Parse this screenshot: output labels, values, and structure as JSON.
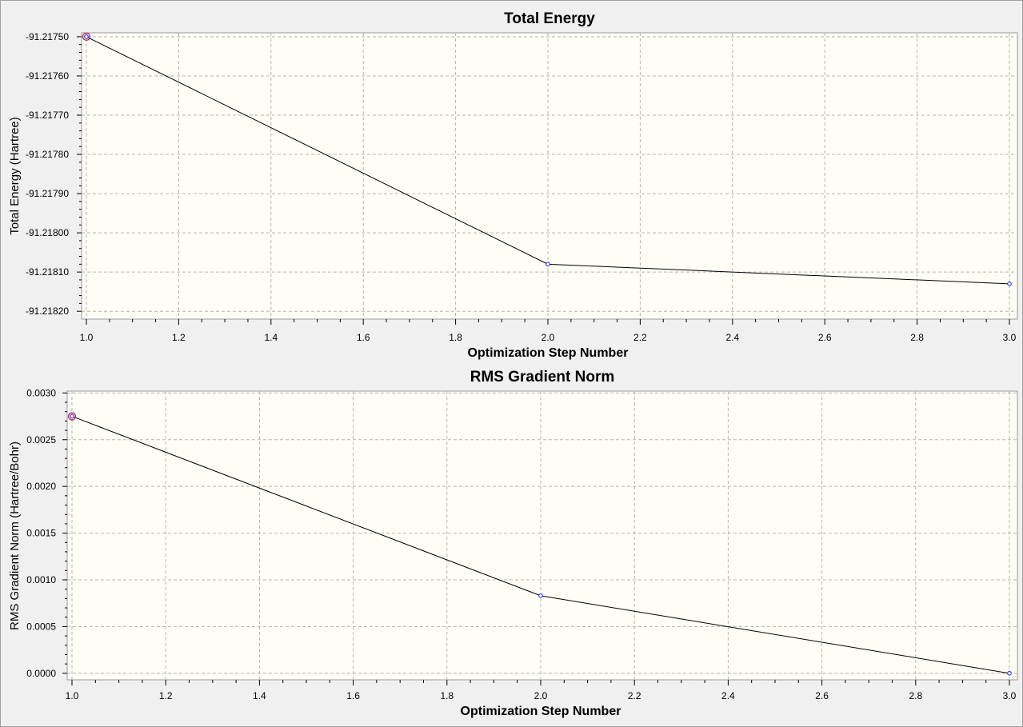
{
  "colors": {
    "background": "#f0f0f0",
    "plot_area": "#fefef6",
    "grid": "#b4b4b4",
    "line": "#000000",
    "marker": "#3a3aff",
    "highlight": "#c0264a"
  },
  "chart_data": [
    {
      "type": "line",
      "title": "Total Energy",
      "xlabel": "Optimization Step Number",
      "ylabel": "Total Energy (Hartree)",
      "x": [
        1.0,
        2.0,
        3.0
      ],
      "y": [
        -91.2175,
        -91.21808,
        -91.21813
      ],
      "xlim": [
        1.0,
        3.0
      ],
      "ylim": [
        -91.21822,
        -91.21749
      ],
      "xticks": [
        1.0,
        1.2,
        1.4,
        1.6,
        1.8,
        2.0,
        2.2,
        2.4,
        2.6,
        2.8,
        3.0
      ],
      "xtick_labels": [
        "1.0",
        "1.2",
        "1.4",
        "1.6",
        "1.8",
        "2.0",
        "2.2",
        "2.4",
        "2.6",
        "2.8",
        "3.0"
      ],
      "yticks": [
        -91.2175,
        -91.2176,
        -91.2177,
        -91.2178,
        -91.2179,
        -91.218,
        -91.2181,
        -91.2182
      ],
      "ytick_labels": [
        "-91.21750",
        "-91.21760",
        "-91.21770",
        "-91.21780",
        "-91.21790",
        "-91.21800",
        "-91.21810",
        "-91.21820"
      ],
      "grid": true,
      "highlighted_index": 0
    },
    {
      "type": "line",
      "title": "RMS Gradient Norm",
      "xlabel": "Optimization Step Number",
      "ylabel": "RMS Gradient Norm (Hartree/Bohr)",
      "x": [
        1.0,
        2.0,
        3.0
      ],
      "y": [
        0.00275,
        0.00083,
        0.0
      ],
      "xlim": [
        1.0,
        3.0
      ],
      "ylim": [
        -7e-05,
        0.00302
      ],
      "xticks": [
        1.0,
        1.2,
        1.4,
        1.6,
        1.8,
        2.0,
        2.2,
        2.4,
        2.6,
        2.8,
        3.0
      ],
      "xtick_labels": [
        "1.0",
        "1.2",
        "1.4",
        "1.6",
        "1.8",
        "2.0",
        "2.2",
        "2.4",
        "2.6",
        "2.8",
        "3.0"
      ],
      "yticks": [
        0.0,
        0.0005,
        0.001,
        0.0015,
        0.002,
        0.0025,
        0.003
      ],
      "ytick_labels": [
        "0.0000",
        "0.0005",
        "0.0010",
        "0.0015",
        "0.0020",
        "0.0025",
        "0.0030"
      ],
      "grid": true,
      "highlighted_index": 0
    }
  ]
}
